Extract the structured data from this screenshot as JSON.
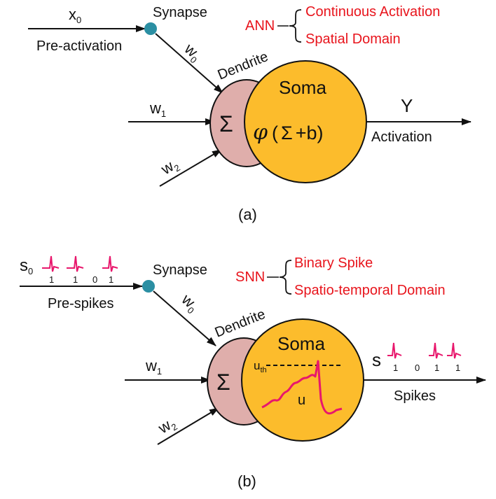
{
  "colors": {
    "soma": "#fcbc2c",
    "dendrite": "#dfaeab",
    "synapse": "#2b8fa3",
    "spike": "#e8176c",
    "accent_red": "#e8141c",
    "ink": "#111111"
  },
  "panel_a": {
    "input0_base": "x",
    "input0_sub": "0",
    "pre_label": "Pre-activation",
    "synapse_label": "Synapse",
    "w0_base": "w",
    "w0_sub": "0",
    "w1_base": "w",
    "w1_sub": "1",
    "w2_base": "w",
    "w2_sub": "2",
    "dendrite_label": "Dendrite",
    "sum_symbol": "Σ",
    "soma_label": "Soma",
    "phi": "φ",
    "paren_open": "(",
    "inner_sum": "Σ",
    "plus_b": "+b)",
    "output_label": "Y",
    "activation_label": "Activation",
    "model": "ANN",
    "bracket_items": [
      "Continuous Activation",
      "Spatial Domain"
    ],
    "caption": "(a)"
  },
  "panel_b": {
    "input0_base": "s",
    "input0_sub": "0",
    "input_bits": [
      "1",
      "1",
      "0",
      "1"
    ],
    "pre_label": "Pre-spikes",
    "synapse_label": "Synapse",
    "w0_base": "w",
    "w0_sub": "0",
    "w1_base": "w",
    "w1_sub": "1",
    "w2_base": "w",
    "w2_sub": "2",
    "dendrite_label": "Dendrite",
    "sum_symbol": "Σ",
    "soma_label": "Soma",
    "threshold_base": "u",
    "threshold_sub": "th",
    "potential_label": "u",
    "output_label": "s",
    "output_bits": [
      "1",
      "0",
      "1",
      "1"
    ],
    "spikes_label": "Spikes",
    "model": "SNN",
    "bracket_items": [
      "Binary Spike",
      "Spatio-temporal Domain"
    ],
    "caption": "(b)"
  }
}
